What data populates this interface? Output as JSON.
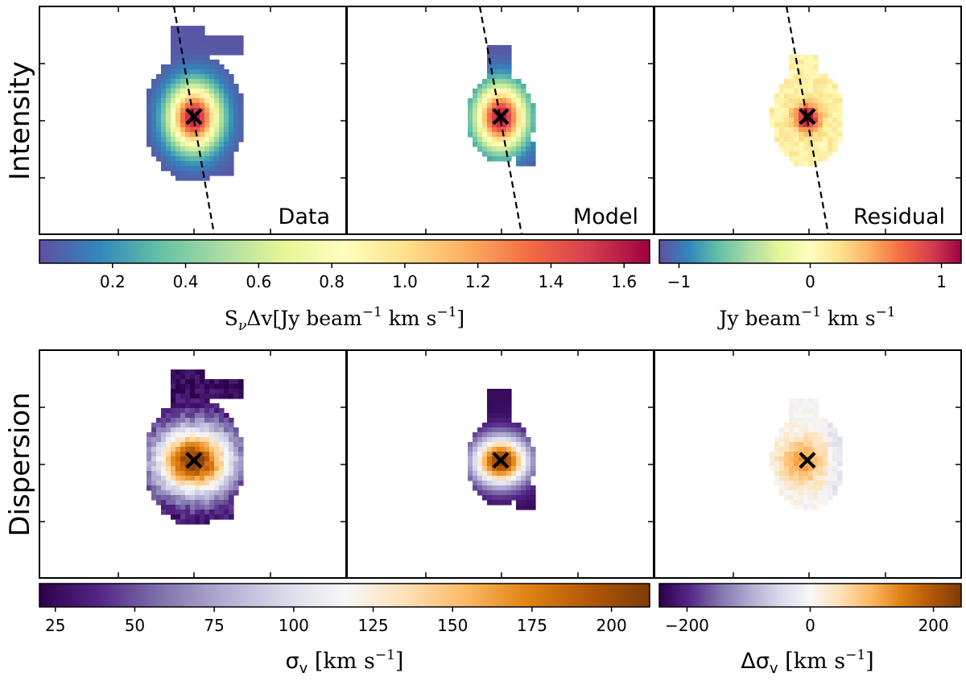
{
  "chart_data": {
    "type": "heatmap",
    "rows": [
      {
        "row_label": "Intensity",
        "panels": [
          {
            "name": "data",
            "label": "Data",
            "map": "intensity",
            "dashed_line": true
          },
          {
            "name": "model",
            "label": "Model",
            "map": "intensity",
            "dashed_line": true
          },
          {
            "name": "residual",
            "label": "Residual",
            "map": "residual",
            "dashed_line": true
          }
        ],
        "colorbars": [
          {
            "name": "intensity",
            "cmap": "Spectral_r",
            "vmin": 0.0,
            "vmax": 1.67,
            "ticks": [
              0.2,
              0.4,
              0.6,
              0.8,
              1.0,
              1.2,
              1.4,
              1.6
            ],
            "tick_labels": [
              "0.2",
              "0.4",
              "0.6",
              "0.8",
              "1.0",
              "1.2",
              "1.4",
              "1.6"
            ],
            "label_base": "S",
            "label_sub": "ν",
            "label_mid": "Δv[Jy beam",
            "label_exp": "−1",
            "label_mid2": " km s",
            "label_exp2": "−1",
            "label_end": "]"
          },
          {
            "name": "intensity-residual",
            "cmap": "Spectral_r",
            "vmin": -1.15,
            "vmax": 1.15,
            "ticks": [
              -1,
              0,
              1
            ],
            "tick_labels": [
              "−1",
              "0",
              "1"
            ],
            "label_base": "Jy beam",
            "label_exp": "−1",
            "label_mid": " km s",
            "label_exp2": "−1"
          }
        ]
      },
      {
        "row_label": "Dispersion",
        "panels": [
          {
            "name": "data",
            "label": "",
            "map": "dispersion",
            "dashed_line": false
          },
          {
            "name": "model",
            "label": "",
            "map": "dispersion",
            "dashed_line": false
          },
          {
            "name": "residual",
            "label": "",
            "map": "dispersion-residual",
            "dashed_line": false
          }
        ],
        "colorbars": [
          {
            "name": "dispersion",
            "cmap": "PuOr_r",
            "vmin": 20,
            "vmax": 212,
            "ticks": [
              25,
              50,
              75,
              100,
              125,
              150,
              175,
              200
            ],
            "tick_labels": [
              "25",
              "50",
              "75",
              "100",
              "125",
              "150",
              "175",
              "200"
            ],
            "label_base": "σ",
            "label_sub": "v",
            "label_mid": " [km s",
            "label_exp": "−1",
            "label_end": "]"
          },
          {
            "name": "dispersion-residual",
            "cmap": "PuOr_r",
            "vmin": -245,
            "vmax": 245,
            "ticks": [
              -200,
              0,
              200
            ],
            "tick_labels": [
              "−200",
              "0",
              "200"
            ],
            "label_base": "Δσ",
            "label_sub": "v",
            "label_mid": " [km s",
            "label_exp": "−1",
            "label_end": "]"
          }
        ]
      }
    ],
    "center_marker": "×",
    "colors": {
      "Spectral_r": [
        "#5e4fa2",
        "#3288bd",
        "#66c2a5",
        "#abdda4",
        "#e6f598",
        "#ffffbf",
        "#fee08b",
        "#fdae61",
        "#f46d43",
        "#d53e4f",
        "#9e0142"
      ],
      "PuOr_r": [
        "#2d004b",
        "#542788",
        "#8073ac",
        "#b2abd2",
        "#d8daeb",
        "#f7f7f7",
        "#fee0b6",
        "#fdb863",
        "#e08214",
        "#b35806",
        "#7f3b08"
      ]
    }
  }
}
